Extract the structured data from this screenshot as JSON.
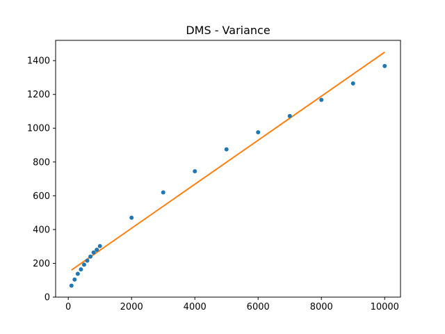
{
  "chart_data": {
    "type": "scatter",
    "title": "DMS - Variance",
    "xlabel": "",
    "ylabel": "",
    "xlim": [
      -400,
      10500
    ],
    "ylim": [
      0,
      1520
    ],
    "grid": false,
    "x_ticks": [
      0,
      2000,
      4000,
      6000,
      8000,
      10000
    ],
    "x_tick_labels": [
      "0",
      "2000",
      "4000",
      "6000",
      "8000",
      "10000"
    ],
    "y_ticks": [
      0,
      200,
      400,
      600,
      800,
      1000,
      1200,
      1400
    ],
    "y_tick_labels": [
      "0",
      "200",
      "400",
      "600",
      "800",
      "1000",
      "1200",
      "1400"
    ],
    "series": [
      {
        "kind": "scatter",
        "color": "#1f77b4",
        "x": [
          100,
          200,
          300,
          400,
          500,
          600,
          700,
          800,
          900,
          1000,
          2000,
          3000,
          4000,
          5000,
          6000,
          7000,
          8000,
          9000,
          10000
        ],
        "y": [
          68,
          104,
          138,
          164,
          192,
          216,
          240,
          264,
          280,
          302,
          470,
          620,
          745,
          875,
          976,
          1072,
          1168,
          1265,
          1368
        ]
      },
      {
        "kind": "line",
        "color": "#ff7f0e",
        "x": [
          100,
          10000
        ],
        "y": [
          160,
          1450
        ]
      }
    ]
  }
}
